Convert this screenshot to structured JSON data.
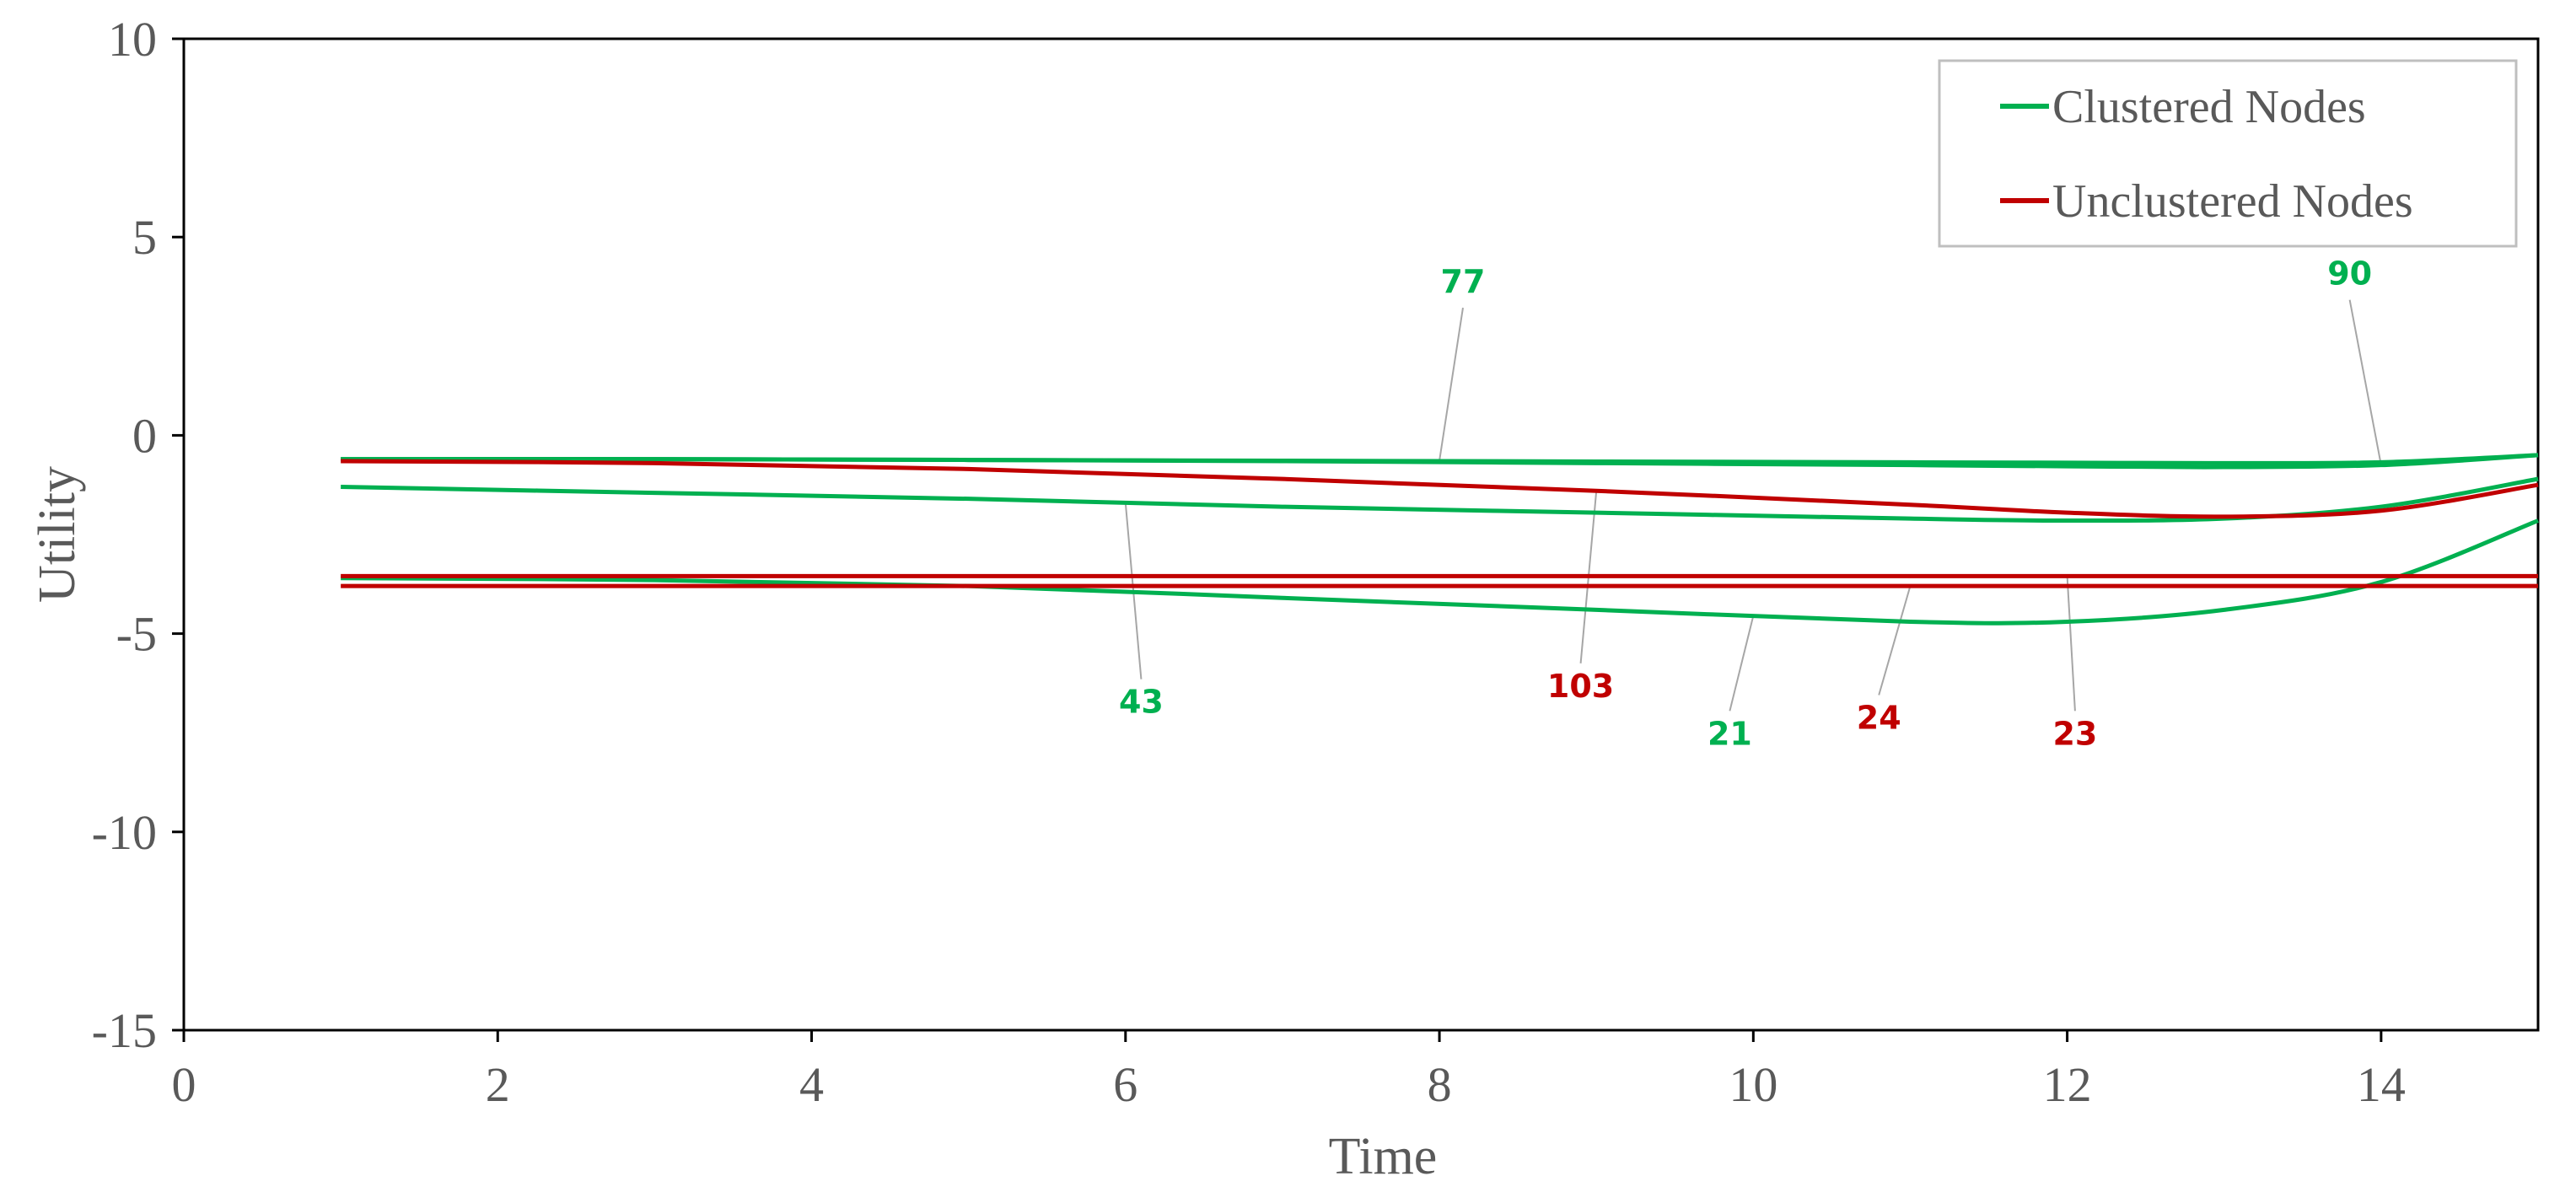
{
  "chart_data": {
    "type": "line",
    "xlabel": "Time",
    "ylabel": "Utility",
    "xlim": [
      0,
      15
    ],
    "ylim": [
      -15,
      10
    ],
    "xticks": [
      0,
      2,
      4,
      6,
      8,
      10,
      12,
      14
    ],
    "xtick_labels": [
      "0",
      "2",
      "4",
      "6",
      "8",
      "10",
      "12",
      "14"
    ],
    "yticks": [
      10,
      5,
      0,
      -5,
      -10,
      -15
    ],
    "ytick_labels": [
      "10",
      "5",
      "0",
      "-5",
      "-10",
      "-15"
    ],
    "grid": false,
    "legend_position": "top-right",
    "legend": [
      {
        "name": "Clustered Nodes",
        "color": "#00b050"
      },
      {
        "name": "Unclustered Nodes",
        "color": "#c00000"
      }
    ],
    "x": [
      1,
      3,
      5,
      7,
      9,
      11,
      12,
      13,
      14,
      15
    ],
    "series": [
      {
        "group": "Clustered Nodes",
        "label": "77",
        "color": "#00b050",
        "values": [
          -0.6,
          -0.6,
          -0.62,
          -0.64,
          -0.66,
          -0.68,
          -0.69,
          -0.7,
          -0.68,
          -0.5
        ]
      },
      {
        "group": "Clustered Nodes",
        "label": "90",
        "color": "#00b050",
        "values": [
          -0.6,
          -0.6,
          -0.62,
          -0.65,
          -0.7,
          -0.75,
          -0.78,
          -0.8,
          -0.75,
          -0.5
        ]
      },
      {
        "group": "Clustered Nodes",
        "label": "43",
        "color": "#00b050",
        "values": [
          -1.3,
          -1.45,
          -1.6,
          -1.8,
          -1.95,
          -2.1,
          -2.15,
          -2.1,
          -1.8,
          -1.1
        ]
      },
      {
        "group": "Clustered Nodes",
        "label": "21",
        "color": "#00b050",
        "values": [
          -3.6,
          -3.65,
          -3.8,
          -4.1,
          -4.4,
          -4.7,
          -4.7,
          -4.4,
          -3.7,
          -2.15
        ]
      },
      {
        "group": "Unclustered Nodes",
        "label": "103",
        "color": "#c00000",
        "values": [
          -0.65,
          -0.7,
          -0.85,
          -1.1,
          -1.4,
          -1.75,
          -1.95,
          -2.05,
          -1.9,
          -1.25
        ]
      },
      {
        "group": "Unclustered Nodes",
        "label": "24",
        "color": "#c00000",
        "values": [
          -3.8,
          -3.8,
          -3.8,
          -3.8,
          -3.8,
          -3.8,
          -3.8,
          -3.8,
          -3.8,
          -3.8
        ]
      },
      {
        "group": "Unclustered Nodes",
        "label": "23",
        "color": "#c00000",
        "values": [
          -3.55,
          -3.55,
          -3.55,
          -3.55,
          -3.55,
          -3.55,
          -3.55,
          -3.55,
          -3.55,
          -3.55
        ]
      }
    ],
    "data_labels": [
      {
        "text": "77",
        "color": "#00b050",
        "x": 8.15,
        "y": 3.6,
        "anchor_x": 8.0,
        "anchor_y": -0.64
      },
      {
        "text": "90",
        "color": "#00b050",
        "x": 13.8,
        "y": 3.8,
        "anchor_x": 14.0,
        "anchor_y": -0.75
      },
      {
        "text": "43",
        "color": "#00b050",
        "x": 6.1,
        "y": -7.0,
        "anchor_x": 6.0,
        "anchor_y": -1.7
      },
      {
        "text": "103",
        "color": "#c00000",
        "x": 8.9,
        "y": -6.6,
        "anchor_x": 9.0,
        "anchor_y": -1.4
      },
      {
        "text": "21",
        "color": "#00b050",
        "x": 9.85,
        "y": -7.8,
        "anchor_x": 10.0,
        "anchor_y": -4.55
      },
      {
        "text": "24",
        "color": "#c00000",
        "x": 10.8,
        "y": -7.4,
        "anchor_x": 11.0,
        "anchor_y": -3.8
      },
      {
        "text": "23",
        "color": "#c00000",
        "x": 12.05,
        "y": -7.8,
        "anchor_x": 12.0,
        "anchor_y": -3.55
      }
    ]
  }
}
